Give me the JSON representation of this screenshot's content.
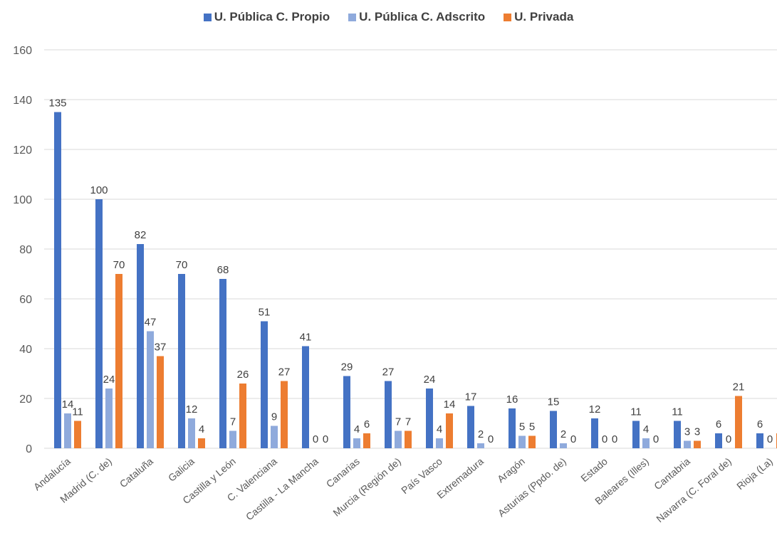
{
  "chart_data": {
    "type": "bar",
    "categories": [
      "Andalucía",
      "Madrid (C. de)",
      "Cataluña",
      "Galicia",
      "Castilla y León",
      "C. Valenciana",
      "Castilla - La Mancha",
      "Canarias",
      "Murcia (Región de)",
      "País Vasco",
      "Extremadura",
      "Aragón",
      "Asturias (Ppdo. de)",
      "Estado",
      "Baleares (Illes)",
      "Cantabria",
      "Navarra (C. Foral de)",
      "Rioja (La)"
    ],
    "series": [
      {
        "name": "U. Pública C. Propio",
        "color": "#4472C4",
        "values": [
          135,
          100,
          82,
          70,
          68,
          51,
          41,
          29,
          27,
          24,
          17,
          16,
          15,
          12,
          11,
          11,
          6,
          6
        ]
      },
      {
        "name": "U. Pública C. Adscrito",
        "color": "#8FAADC",
        "values": [
          14,
          24,
          47,
          12,
          7,
          9,
          0,
          4,
          7,
          4,
          2,
          5,
          2,
          0,
          4,
          3,
          0,
          0
        ]
      },
      {
        "name": "U. Privada",
        "color": "#ED7D31",
        "values": [
          11,
          70,
          37,
          4,
          26,
          27,
          0,
          6,
          7,
          14,
          0,
          5,
          0,
          0,
          0,
          3,
          21,
          6
        ]
      }
    ],
    "yticks": [
      "0",
      "20",
      "40",
      "60",
      "80",
      "100",
      "120",
      "140",
      "160"
    ],
    "ylim": [
      0,
      160
    ],
    "grid": true,
    "legend_position": "top"
  }
}
